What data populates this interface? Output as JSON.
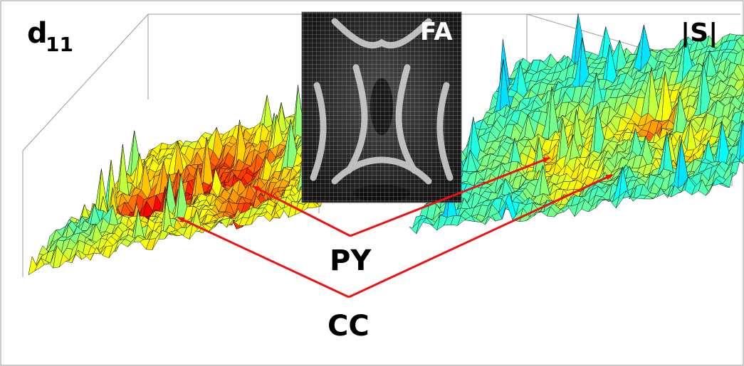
{
  "labels": {
    "left_panel": "d",
    "left_panel_sub": "11",
    "right_panel": "|S|",
    "center_panel": "FA",
    "arrow_group_top": "PY",
    "arrow_group_bottom": "CC"
  },
  "colors": {
    "background": "#ffffff",
    "frame": "#aaaaaa",
    "arrow": "#ee1111",
    "mesh_line": "#1a1a1a",
    "fa_bg": "#1c1c1c"
  }
}
